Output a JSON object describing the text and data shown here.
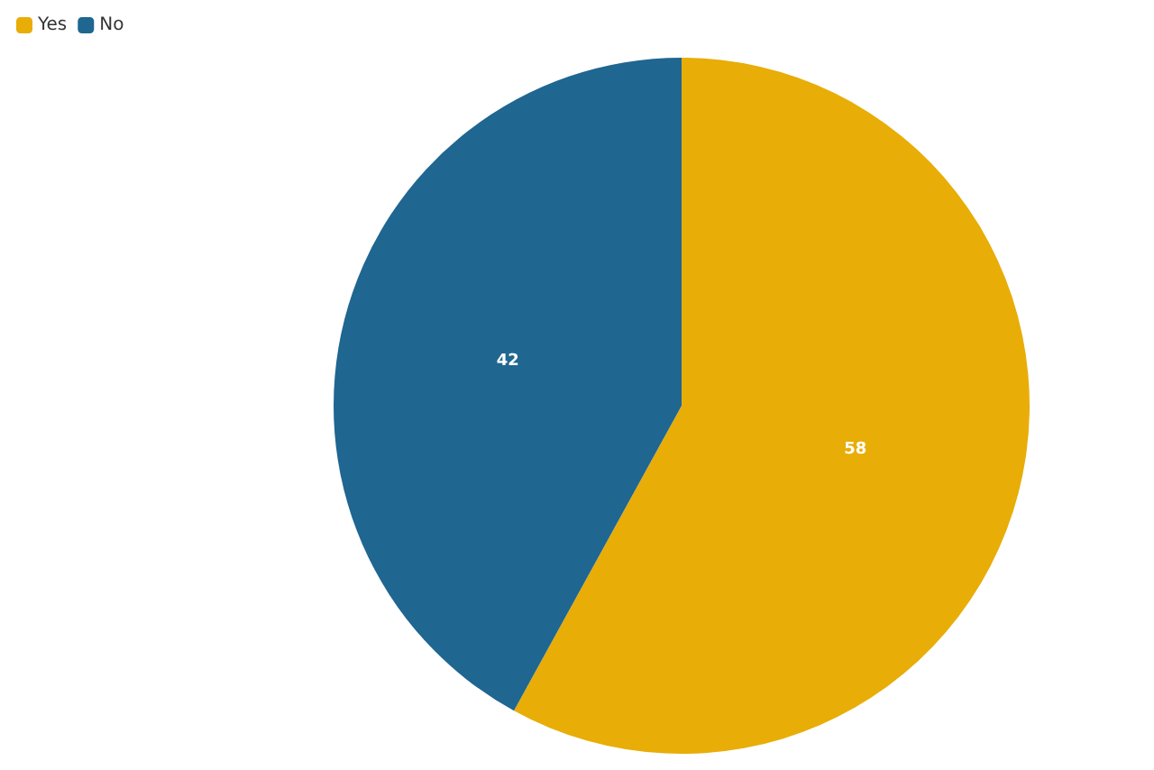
{
  "chart_data": {
    "type": "pie",
    "categories": [
      "Yes",
      "No"
    ],
    "values": [
      58,
      42
    ],
    "colors": [
      "#e8ad07",
      "#1f6691"
    ],
    "data_labels": true,
    "legend": "top left"
  }
}
